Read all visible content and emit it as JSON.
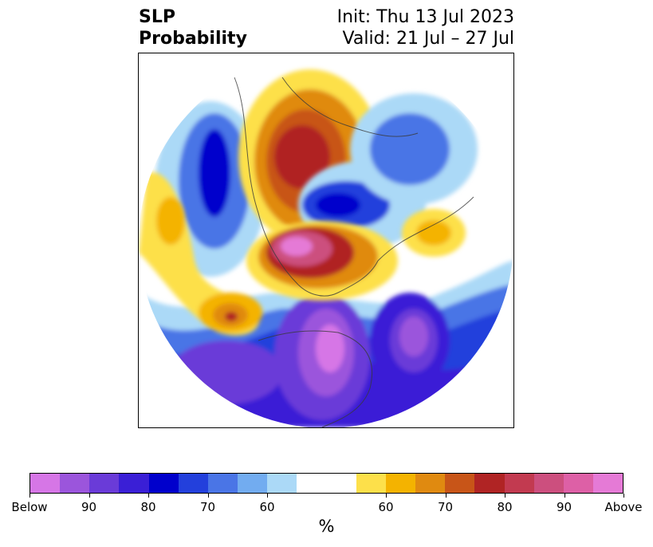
{
  "title": {
    "left_line1": "SLP",
    "left_line2": "Probability",
    "right_line1": "Init: Thu 13 Jul 2023",
    "right_line2": "Valid: 21 Jul – 27 Jul"
  },
  "colorbar": {
    "colors": [
      "#d676e6",
      "#9b55dc",
      "#6a3bd8",
      "#3a1fd6",
      "#0000cc",
      "#2340dc",
      "#4a75e6",
      "#72acf0",
      "#abd9f7",
      "#ffffff",
      "#ffffff",
      "#fde04a",
      "#f4b300",
      "#e08a10",
      "#c85518",
      "#b02424",
      "#c23a50",
      "#cc4f7e",
      "#dd60a6",
      "#e57ad6"
    ],
    "tick_labels": [
      "Below",
      "90",
      "80",
      "70",
      "60",
      "60",
      "70",
      "80",
      "90",
      "Above"
    ],
    "unit": "%"
  },
  "map": {
    "projection": "north polar stereographic",
    "category_colors": {
      "below_strong": "#9b55dc",
      "below_mid": "#2340dc",
      "below_weak": "#abd9f7",
      "above_weak": "#fde04a",
      "above_mid": "#e08a10",
      "above_strong": "#b02424",
      "above_extreme": "#dd60a6"
    }
  }
}
